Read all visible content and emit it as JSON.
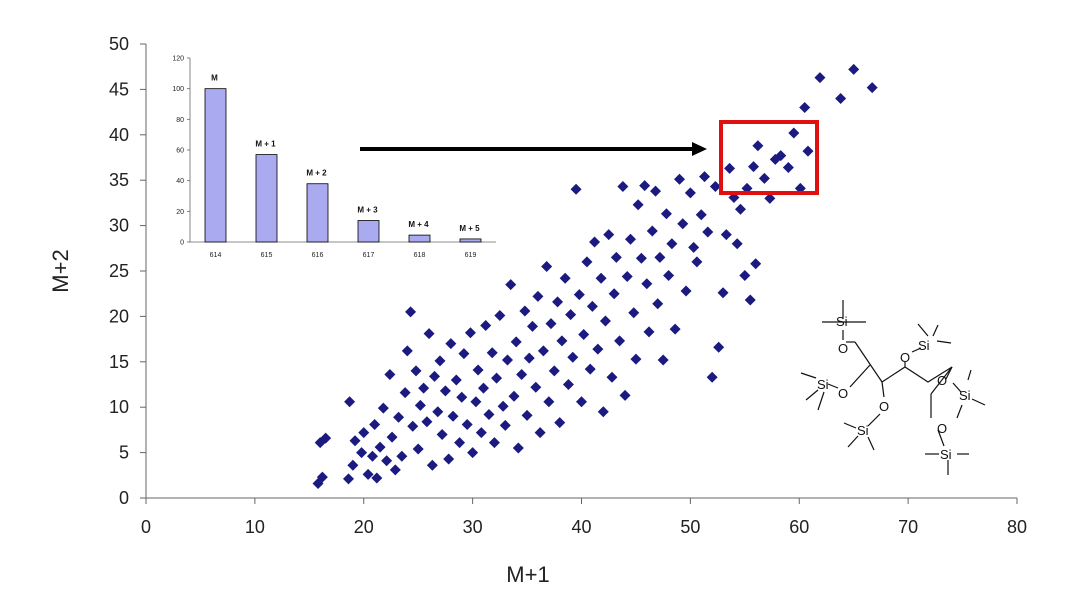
{
  "chart_data": [
    {
      "type": "scatter",
      "xlabel": "M+1",
      "ylabel": "M+2",
      "xlim": [
        0,
        80
      ],
      "ylim": [
        0,
        50
      ],
      "x_ticks": [
        "0",
        "10",
        "20",
        "30",
        "40",
        "50",
        "60",
        "70",
        "80"
      ],
      "y_ticks": [
        "0",
        "5",
        "10",
        "15",
        "20",
        "25",
        "30",
        "35",
        "40",
        "45",
        "50"
      ],
      "grid": false,
      "marker": "diamond",
      "color": "#1a1a80",
      "series": [
        {
          "points": [
            [
              15.8,
              1.6
            ],
            [
              16.2,
              2.3
            ],
            [
              16.0,
              6.1
            ],
            [
              16.5,
              6.6
            ],
            [
              18.7,
              10.6
            ],
            [
              18.6,
              2.1
            ],
            [
              19.0,
              3.6
            ],
            [
              19.2,
              6.3
            ],
            [
              19.8,
              5.0
            ],
            [
              20.0,
              7.2
            ],
            [
              20.4,
              2.6
            ],
            [
              20.8,
              4.6
            ],
            [
              21.0,
              8.1
            ],
            [
              21.2,
              2.2
            ],
            [
              21.5,
              5.6
            ],
            [
              21.8,
              9.9
            ],
            [
              22.1,
              4.1
            ],
            [
              22.4,
              13.6
            ],
            [
              22.6,
              6.7
            ],
            [
              22.9,
              3.1
            ],
            [
              23.2,
              8.9
            ],
            [
              23.5,
              4.6
            ],
            [
              23.8,
              11.6
            ],
            [
              24.0,
              16.2
            ],
            [
              24.3,
              20.5
            ],
            [
              24.5,
              7.9
            ],
            [
              24.8,
              14.0
            ],
            [
              25.0,
              5.4
            ],
            [
              25.2,
              10.2
            ],
            [
              25.5,
              12.1
            ],
            [
              25.8,
              8.4
            ],
            [
              26.0,
              18.1
            ],
            [
              26.3,
              3.6
            ],
            [
              26.5,
              13.4
            ],
            [
              26.8,
              9.5
            ],
            [
              27.0,
              15.1
            ],
            [
              27.2,
              7.0
            ],
            [
              27.5,
              11.8
            ],
            [
              27.8,
              4.3
            ],
            [
              28.0,
              17.0
            ],
            [
              28.2,
              9.0
            ],
            [
              28.5,
              13.0
            ],
            [
              28.8,
              6.1
            ],
            [
              29.0,
              11.1
            ],
            [
              29.2,
              15.9
            ],
            [
              29.5,
              8.1
            ],
            [
              29.8,
              18.2
            ],
            [
              30.0,
              5.0
            ],
            [
              30.3,
              10.6
            ],
            [
              30.5,
              14.1
            ],
            [
              30.8,
              7.2
            ],
            [
              31.0,
              12.1
            ],
            [
              31.2,
              19.0
            ],
            [
              31.5,
              9.2
            ],
            [
              31.8,
              16.0
            ],
            [
              32.0,
              6.1
            ],
            [
              32.2,
              13.2
            ],
            [
              32.5,
              20.1
            ],
            [
              32.8,
              10.1
            ],
            [
              33.0,
              8.0
            ],
            [
              33.2,
              15.2
            ],
            [
              33.5,
              23.5
            ],
            [
              33.8,
              11.2
            ],
            [
              34.0,
              17.2
            ],
            [
              34.2,
              5.5
            ],
            [
              34.5,
              13.6
            ],
            [
              34.8,
              20.6
            ],
            [
              35.0,
              9.1
            ],
            [
              35.2,
              15.4
            ],
            [
              35.5,
              18.9
            ],
            [
              35.8,
              12.2
            ],
            [
              36.0,
              22.2
            ],
            [
              36.2,
              7.2
            ],
            [
              36.5,
              16.2
            ],
            [
              36.8,
              25.5
            ],
            [
              37.0,
              10.6
            ],
            [
              37.2,
              19.2
            ],
            [
              37.5,
              14.0
            ],
            [
              37.8,
              21.6
            ],
            [
              38.0,
              8.3
            ],
            [
              38.2,
              17.3
            ],
            [
              38.5,
              24.2
            ],
            [
              38.8,
              12.5
            ],
            [
              39.0,
              20.2
            ],
            [
              39.2,
              15.5
            ],
            [
              39.5,
              34.0
            ],
            [
              39.8,
              22.4
            ],
            [
              40.0,
              10.6
            ],
            [
              40.2,
              18.0
            ],
            [
              40.5,
              26.0
            ],
            [
              40.8,
              14.2
            ],
            [
              41.0,
              21.1
            ],
            [
              41.2,
              28.2
            ],
            [
              41.5,
              16.4
            ],
            [
              41.8,
              24.2
            ],
            [
              42.0,
              9.5
            ],
            [
              42.2,
              19.5
            ],
            [
              42.5,
              29.0
            ],
            [
              42.8,
              13.3
            ],
            [
              43.0,
              22.5
            ],
            [
              43.2,
              26.5
            ],
            [
              43.5,
              17.3
            ],
            [
              43.8,
              34.3
            ],
            [
              44.0,
              11.3
            ],
            [
              44.2,
              24.4
            ],
            [
              44.5,
              28.5
            ],
            [
              44.8,
              20.4
            ],
            [
              45.0,
              15.3
            ],
            [
              45.2,
              32.3
            ],
            [
              45.5,
              26.4
            ],
            [
              45.8,
              34.4
            ],
            [
              46.0,
              23.6
            ],
            [
              46.2,
              18.3
            ],
            [
              46.5,
              29.4
            ],
            [
              46.8,
              33.8
            ],
            [
              47.0,
              21.4
            ],
            [
              47.2,
              26.5
            ],
            [
              47.5,
              15.2
            ],
            [
              47.8,
              31.3
            ],
            [
              48.0,
              24.5
            ],
            [
              48.3,
              28.0
            ],
            [
              48.6,
              18.6
            ],
            [
              49.0,
              35.1
            ],
            [
              49.3,
              30.2
            ],
            [
              49.6,
              22.8
            ],
            [
              50.0,
              33.6
            ],
            [
              50.3,
              27.6
            ],
            [
              50.6,
              26.0
            ],
            [
              51.0,
              31.2
            ],
            [
              51.3,
              35.4
            ],
            [
              51.6,
              29.3
            ],
            [
              52.0,
              13.3
            ],
            [
              52.3,
              34.3
            ],
            [
              52.6,
              16.6
            ],
            [
              53.0,
              22.6
            ],
            [
              53.3,
              29.0
            ],
            [
              53.6,
              36.3
            ],
            [
              54.0,
              33.1
            ],
            [
              54.3,
              28.0
            ],
            [
              54.6,
              31.8
            ],
            [
              55.0,
              24.5
            ],
            [
              55.2,
              34.1
            ],
            [
              55.5,
              21.8
            ],
            [
              55.8,
              36.5
            ],
            [
              56.0,
              25.8
            ],
            [
              56.2,
              38.8
            ],
            [
              56.8,
              35.2
            ],
            [
              57.3,
              33.0
            ],
            [
              57.8,
              37.3
            ],
            [
              58.3,
              37.7
            ],
            [
              59.0,
              36.4
            ],
            [
              59.5,
              40.2
            ],
            [
              60.1,
              34.1
            ],
            [
              60.5,
              43.0
            ],
            [
              60.8,
              38.2
            ],
            [
              61.9,
              46.3
            ],
            [
              63.8,
              44.0
            ],
            [
              65.0,
              47.2
            ],
            [
              66.7,
              45.2
            ]
          ]
        }
      ]
    },
    {
      "type": "bar",
      "categories": [
        "614",
        "615",
        "616",
        "617",
        "618",
        "619"
      ],
      "values": [
        100,
        57,
        38,
        14,
        4.5,
        2
      ],
      "bar_labels": [
        "M",
        "M + 1",
        "M + 2",
        "M + 3",
        "M + 4",
        "M + 5"
      ],
      "y_ticks": [
        "0",
        "20",
        "40",
        "60",
        "80",
        "100",
        "120"
      ],
      "ylim": [
        0,
        120
      ],
      "color": "#aaaaf0"
    }
  ],
  "molecule": {
    "si_label": "Si",
    "o_label": "O"
  },
  "colors": {
    "points": "#1a1a80",
    "highlight_box": "#e01010",
    "arrow": "#000000",
    "inset_bars": "#aaaaf0"
  }
}
